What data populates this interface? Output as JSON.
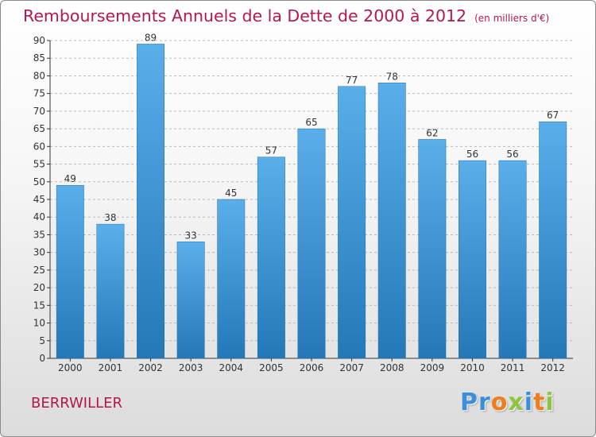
{
  "title": "Remboursements Annuels de la Dette de 2000 à 2012",
  "unit": "(en milliers d'€)",
  "commune": "BERRWILLER",
  "logo": {
    "text": "Proxiti",
    "letters": [
      {
        "ch": "P",
        "color": "#3a8fd8"
      },
      {
        "ch": "r",
        "color": "#3a8fd8"
      },
      {
        "ch": "o",
        "color": "#ef7d1a"
      },
      {
        "ch": "x",
        "color": "#8cc63f"
      },
      {
        "ch": "i",
        "color": "#3a8fd8"
      },
      {
        "ch": "t",
        "color": "#ef7d1a"
      },
      {
        "ch": "i",
        "color": "#8cc63f"
      }
    ]
  },
  "colors": {
    "title": "#b5174c",
    "bar_top": "#5aaeea",
    "bar_bottom": "#2478b8",
    "axis": "#333333",
    "grid": "#bbbbbb"
  },
  "chart_data": {
    "type": "bar",
    "categories": [
      "2000",
      "2001",
      "2002",
      "2003",
      "2004",
      "2005",
      "2006",
      "2007",
      "2008",
      "2009",
      "2010",
      "2011",
      "2012"
    ],
    "values": [
      49,
      38,
      89,
      33,
      45,
      57,
      65,
      77,
      78,
      62,
      56,
      56,
      67
    ],
    "title": "Remboursements Annuels de la Dette de 2000 à 2012",
    "xlabel": "",
    "ylabel": "",
    "ylim": [
      0,
      90
    ],
    "yticks": [
      0,
      5,
      10,
      15,
      20,
      25,
      30,
      35,
      40,
      45,
      50,
      55,
      60,
      65,
      70,
      75,
      80,
      85,
      90
    ],
    "grid": true,
    "data_labels": true,
    "legend": "none"
  }
}
